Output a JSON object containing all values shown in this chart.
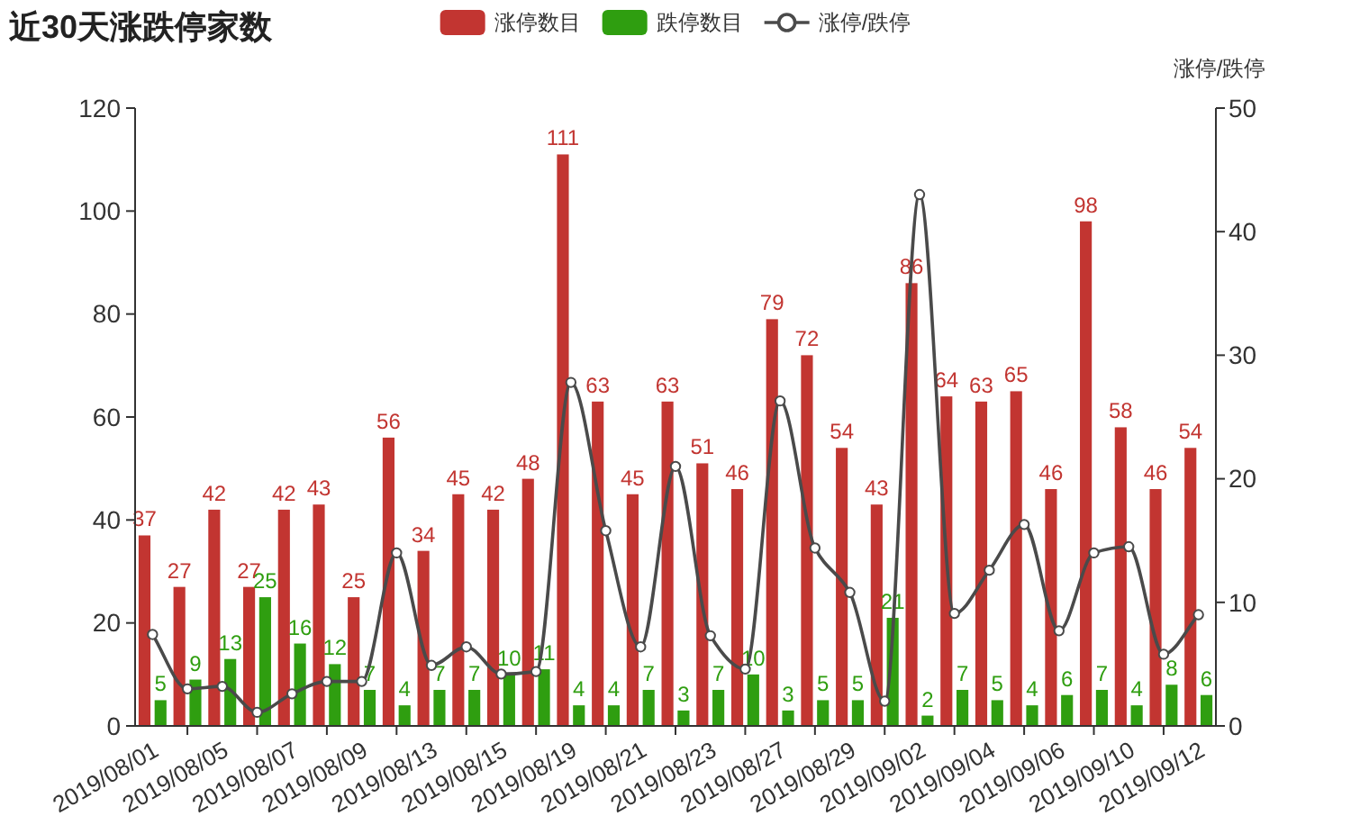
{
  "chart_data": {
    "type": "bar",
    "title": "近30天涨跌停家数",
    "y2label": "涨停/跌停",
    "categories": [
      "2019/08/01",
      null,
      "2019/08/05",
      null,
      "2019/08/07",
      null,
      "2019/08/09",
      null,
      "2019/08/13",
      null,
      "2019/08/15",
      null,
      "2019/08/19",
      null,
      "2019/08/21",
      null,
      "2019/08/23",
      null,
      "2019/08/27",
      null,
      "2019/08/29",
      null,
      "2019/09/02",
      null,
      "2019/09/04",
      null,
      "2019/09/06",
      null,
      "2019/09/10",
      null,
      "2019/09/12"
    ],
    "series": [
      {
        "name": "涨停数目",
        "color": "#c23531",
        "values": [
          37,
          27,
          42,
          27,
          42,
          43,
          25,
          56,
          34,
          45,
          42,
          48,
          111,
          63,
          45,
          63,
          51,
          46,
          79,
          72,
          54,
          43,
          86,
          64,
          63,
          65,
          46,
          98,
          58,
          46,
          54
        ]
      },
      {
        "name": "跌停数目",
        "color": "#2f9e10",
        "values": [
          5,
          9,
          13,
          25,
          16,
          12,
          7,
          4,
          7,
          7,
          10,
          11,
          4,
          4,
          7,
          3,
          7,
          10,
          3,
          5,
          5,
          21,
          2,
          7,
          5,
          4,
          6,
          7,
          4,
          8,
          6
        ]
      },
      {
        "name": "涨停/跌停",
        "type": "line",
        "axis": "y2",
        "color": "#4a4a4a",
        "marker": "circle",
        "data_labels": false,
        "values": [
          7.4,
          3.0,
          3.2,
          1.1,
          2.6,
          3.6,
          3.6,
          14,
          4.9,
          6.4,
          4.2,
          4.4,
          27.8,
          15.8,
          6.4,
          21,
          7.3,
          4.6,
          26.3,
          14.4,
          10.8,
          2.0,
          43,
          9.1,
          12.6,
          16.3,
          7.7,
          14,
          14.5,
          5.8,
          9
        ]
      }
    ],
    "ylim": [
      0,
      120
    ],
    "yticks": [
      0,
      20,
      40,
      60,
      80,
      100,
      120
    ],
    "y2lim": [
      0,
      50
    ],
    "y2ticks": [
      0,
      10,
      20,
      30,
      40,
      50
    ],
    "data_labels": true,
    "legend": "top",
    "grid": false
  }
}
